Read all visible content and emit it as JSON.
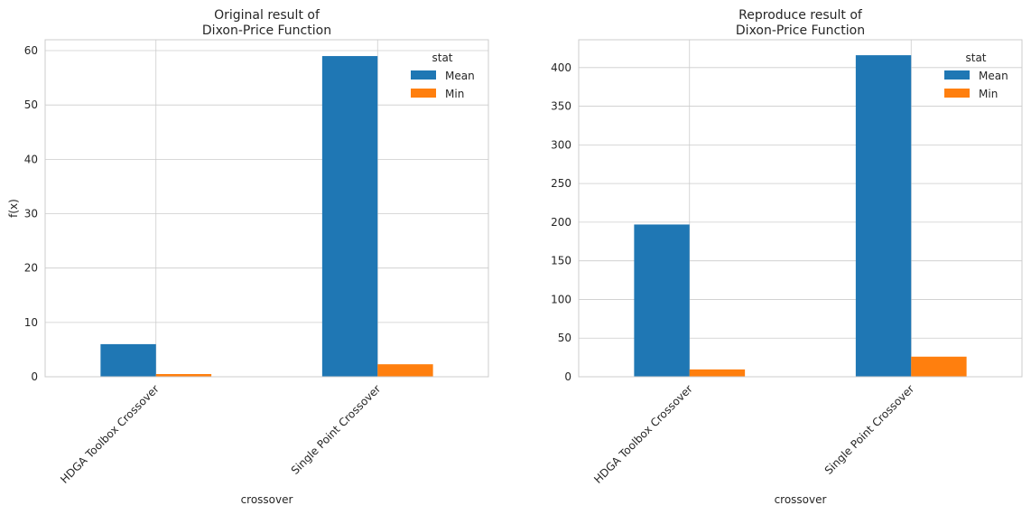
{
  "chart_data": [
    {
      "type": "bar",
      "title_lines": [
        "Original result of",
        "Dixon-Price Function"
      ],
      "xlabel": "crossover",
      "ylabel": "f(x)",
      "categories": [
        "HDGA Toolbox Crossover",
        "Single Point Crossover"
      ],
      "series": [
        {
          "name": "Mean",
          "values": [
            6.0,
            59.0
          ]
        },
        {
          "name": "Min",
          "values": [
            0.5,
            2.3
          ]
        }
      ],
      "ylim": [
        0,
        62
      ],
      "yticks": [
        0,
        10,
        20,
        30,
        40,
        50,
        60
      ],
      "legend_title": "stat",
      "legend_loc": "upper right",
      "grid": true
    },
    {
      "type": "bar",
      "title_lines": [
        "Reproduce result of",
        "Dixon-Price Function"
      ],
      "xlabel": "crossover",
      "ylabel": "",
      "categories": [
        "HDGA Toolbox Crossover",
        "Single Point Crossover"
      ],
      "series": [
        {
          "name": "Mean",
          "values": [
            197.0,
            416.0
          ]
        },
        {
          "name": "Min",
          "values": [
            9.5,
            26.0
          ]
        }
      ],
      "ylim": [
        0,
        436
      ],
      "yticks": [
        0,
        50,
        100,
        150,
        200,
        250,
        300,
        350,
        400
      ],
      "legend_title": "stat",
      "legend_loc": "upper right",
      "grid": true
    }
  ],
  "colors": {
    "Mean": "#1f77b4",
    "Min": "#ff7f0e",
    "grid": "#cccccc",
    "spine": "#cccccc",
    "text": "#262626"
  }
}
